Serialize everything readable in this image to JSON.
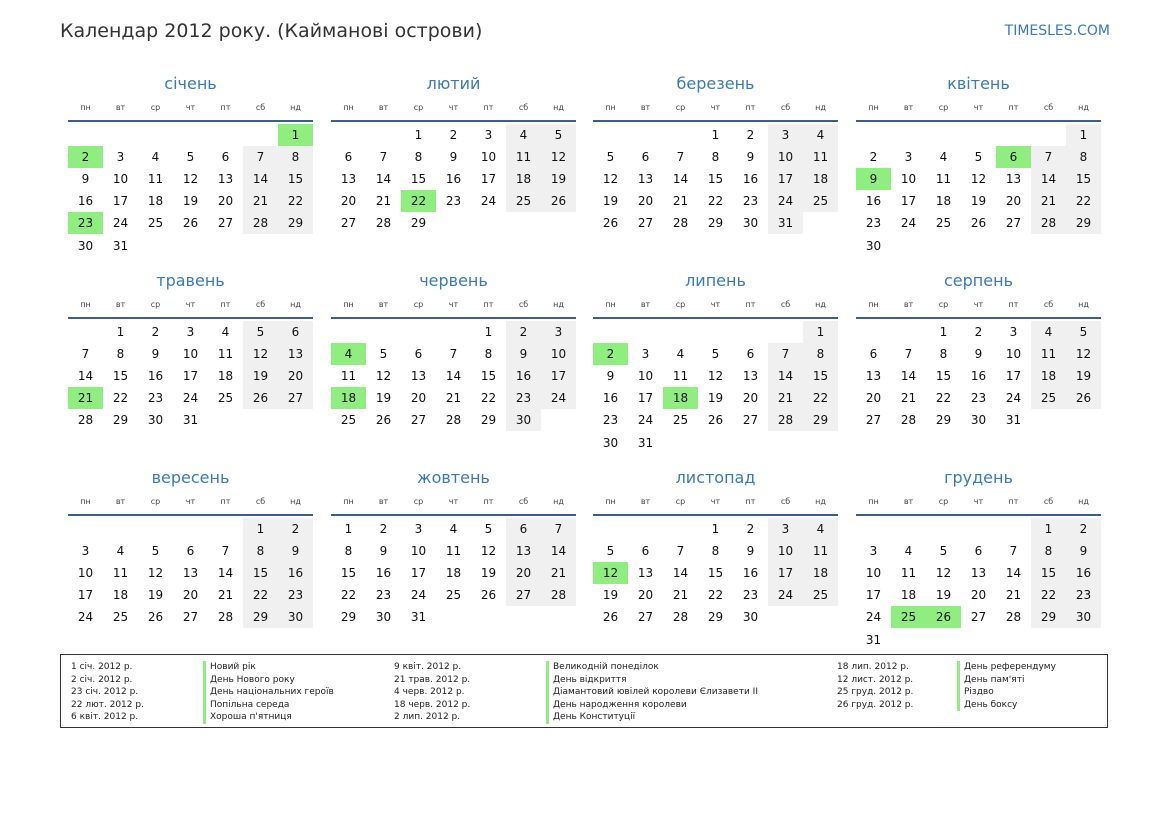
{
  "header": {
    "title": "Календар 2012 року. (Кайманові острови)",
    "site": "TIMESLES.COM"
  },
  "weekdays": [
    "пн",
    "вт",
    "ср",
    "чт",
    "пт",
    "сб",
    "нд"
  ],
  "months": [
    {
      "name": "січень",
      "offset": 6,
      "days": 31,
      "holidays": [
        1,
        2,
        23
      ]
    },
    {
      "name": "лютий",
      "offset": 2,
      "days": 29,
      "holidays": [
        22
      ]
    },
    {
      "name": "березень",
      "offset": 3,
      "days": 31,
      "holidays": []
    },
    {
      "name": "квітень",
      "offset": 6,
      "days": 30,
      "holidays": [
        6,
        9
      ]
    },
    {
      "name": "травень",
      "offset": 1,
      "days": 31,
      "holidays": [
        21
      ]
    },
    {
      "name": "червень",
      "offset": 4,
      "days": 30,
      "holidays": [
        4,
        18
      ]
    },
    {
      "name": "липень",
      "offset": 6,
      "days": 31,
      "holidays": [
        2,
        18
      ]
    },
    {
      "name": "серпень",
      "offset": 2,
      "days": 31,
      "holidays": []
    },
    {
      "name": "вересень",
      "offset": 5,
      "days": 30,
      "holidays": []
    },
    {
      "name": "жовтень",
      "offset": 0,
      "days": 31,
      "holidays": []
    },
    {
      "name": "листопад",
      "offset": 3,
      "days": 30,
      "holidays": [
        12
      ]
    },
    {
      "name": "грудень",
      "offset": 5,
      "days": 31,
      "holidays": [
        25,
        26
      ]
    }
  ],
  "legend": [
    {
      "date": "1 січ. 2012 р.",
      "name": "Новий рік"
    },
    {
      "date": "2 січ. 2012 р.",
      "name": "День Нового року"
    },
    {
      "date": "23 січ. 2012 р.",
      "name": "День національних героїв"
    },
    {
      "date": "22 лют. 2012 р.",
      "name": "Попільна середа"
    },
    {
      "date": "6 квіт. 2012 р.",
      "name": "Хороша п'ятниця"
    },
    {
      "date": "9 квіт. 2012 р.",
      "name": "Великодній понеділок"
    },
    {
      "date": "21 трав. 2012 р.",
      "name": "День відкриття"
    },
    {
      "date": "4 черв. 2012 р.",
      "name": "Діамантовий ювілей королеви Єлизавети II"
    },
    {
      "date": "18 черв. 2012 р.",
      "name": "День народження королеви"
    },
    {
      "date": "2 лип. 2012 р.",
      "name": "День Конституції"
    },
    {
      "date": "18 лип. 2012 р.",
      "name": "День референдуму"
    },
    {
      "date": "12 лист. 2012 р.",
      "name": "День пам'яті"
    },
    {
      "date": "25 груд. 2012 р.",
      "name": "Різдво"
    },
    {
      "date": "26 груд. 2012 р.",
      "name": "День боксу"
    }
  ]
}
